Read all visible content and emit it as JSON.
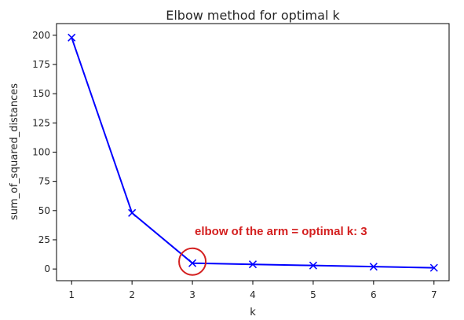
{
  "chart_data": {
    "type": "line",
    "title": "Elbow method for optimal k",
    "xlabel": "k",
    "ylabel": "sum_of_squared_distances",
    "x": [
      1,
      2,
      3,
      4,
      5,
      6,
      7
    ],
    "series": [
      {
        "values": [
          198,
          48,
          5,
          4,
          3,
          2,
          1
        ],
        "color": "#0000ff",
        "marker": "x"
      }
    ],
    "xlim": [
      0.75,
      7.25
    ],
    "ylim": [
      -10,
      210
    ],
    "xticks": [
      "1",
      "2",
      "3",
      "4",
      "5",
      "6",
      "7"
    ],
    "yticks": [
      "0",
      "25",
      "50",
      "75",
      "100",
      "125",
      "150",
      "175",
      "200"
    ],
    "grid": false,
    "annotation": {
      "text": "elbow of the arm  = optimal k: 3",
      "color": "#d42020",
      "highlight_x": 3,
      "highlight_y": 5
    }
  }
}
